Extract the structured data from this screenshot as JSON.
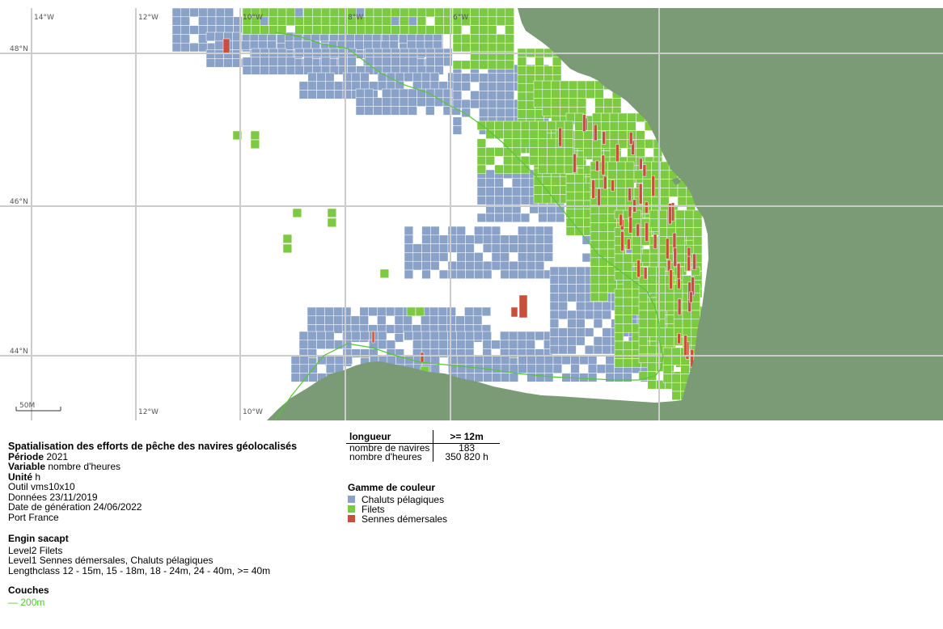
{
  "map": {
    "lon_labels_top": [
      "14°W",
      "12°W",
      "10°W",
      "8°W",
      "6°W"
    ],
    "lon_labels_bottom": [
      "12°W",
      "10°W"
    ],
    "lat_labels": [
      "48°N",
      "46°N",
      "44°N"
    ],
    "scale_label": "50M",
    "colors": {
      "land": "#7b9a76",
      "chaluts": "#8aa2c8",
      "filets": "#7cc942",
      "sennes": "#c8503a",
      "isobath": "#55c535",
      "graticule": "#cccccc"
    }
  },
  "info": {
    "title": "Spatialisation des efforts de pêche des navires géolocalisés",
    "periode_label": "Période",
    "periode_value": "2021",
    "variable_label": "Variable",
    "variable_value": "nombre d'heures",
    "unite_label": "Unité",
    "unite_value": "h",
    "outil": "Outil vms10x10",
    "donnees": "Données 23/11/2019",
    "date_generation": "Date de génération 24/06/2022",
    "port": "Port France"
  },
  "engin": {
    "title": "Engin sacapt",
    "level2": "Level2 Filets",
    "level1": "Level1 Sennes démersales, Chaluts pélagiques",
    "lengthclass": "Lengthclass 12 - 15m, 15 - 18m, 18 - 24m, 24 - 40m, >= 40m"
  },
  "couches": {
    "title": "Couches",
    "isobath_symbol": "—",
    "isobath_label": "200m"
  },
  "stats": {
    "header_left": "longueur",
    "header_right": ">= 12m",
    "rows": [
      {
        "label": "nombre de navires",
        "value": "183"
      },
      {
        "label": "nombre d'heures",
        "value": "350 820 h"
      }
    ]
  },
  "legend": {
    "title": "Gamme de couleur",
    "items": [
      {
        "label": "Chaluts pélagiques",
        "color": "#8aa2c8"
      },
      {
        "label": "Filets",
        "color": "#7cc942"
      },
      {
        "label": "Sennes démersales",
        "color": "#c8503a"
      }
    ]
  }
}
